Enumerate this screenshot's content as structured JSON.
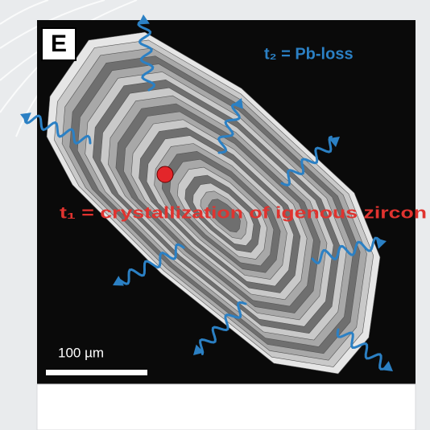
{
  "panel": {
    "letter": "E",
    "pb_loss_label": "t₂ = Pb-loss",
    "crystallization_label": "t₁ = crystallization of igenous zircon",
    "scale_label": "100 µm"
  }
}
